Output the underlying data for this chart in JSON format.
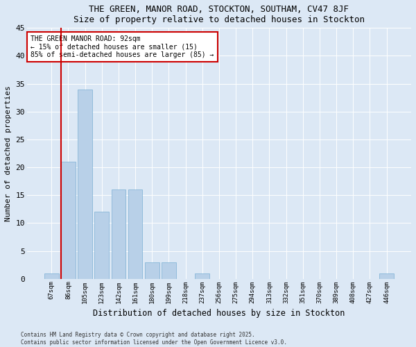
{
  "title": "THE GREEN, MANOR ROAD, STOCKTON, SOUTHAM, CV47 8JF",
  "subtitle": "Size of property relative to detached houses in Stockton",
  "xlabel": "Distribution of detached houses by size in Stockton",
  "ylabel": "Number of detached properties",
  "categories": [
    "67sqm",
    "86sqm",
    "105sqm",
    "123sqm",
    "142sqm",
    "161sqm",
    "180sqm",
    "199sqm",
    "218sqm",
    "237sqm",
    "256sqm",
    "275sqm",
    "294sqm",
    "313sqm",
    "332sqm",
    "351sqm",
    "370sqm",
    "389sqm",
    "408sqm",
    "427sqm",
    "446sqm"
  ],
  "values": [
    1,
    21,
    34,
    12,
    16,
    16,
    3,
    3,
    0,
    1,
    0,
    0,
    0,
    0,
    0,
    0,
    0,
    0,
    0,
    0,
    1
  ],
  "bar_color": "#b8d0e8",
  "bar_edge_color": "#7aafd4",
  "ylim": [
    0,
    45
  ],
  "yticks": [
    0,
    5,
    10,
    15,
    20,
    25,
    30,
    35,
    40,
    45
  ],
  "property_line_color": "#cc0000",
  "annotation_text": "THE GREEN MANOR ROAD: 92sqm\n← 15% of detached houses are smaller (15)\n85% of semi-detached houses are larger (85) →",
  "annotation_box_color": "#ffffff",
  "annotation_box_edge": "#cc0000",
  "footer_line1": "Contains HM Land Registry data © Crown copyright and database right 2025.",
  "footer_line2": "Contains public sector information licensed under the Open Government Licence v3.0.",
  "bg_color": "#dce8f5",
  "plot_bg_color": "#dce8f5"
}
